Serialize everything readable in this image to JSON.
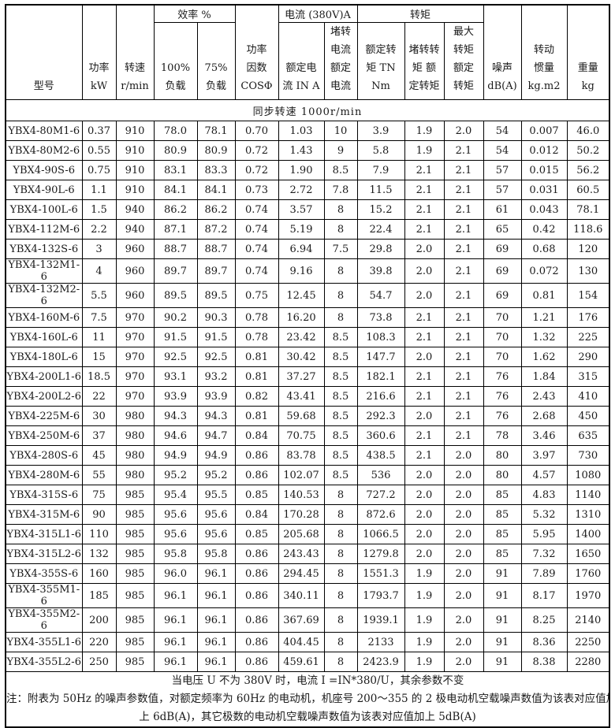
{
  "page": {
    "background": "#ffffff",
    "border_color": "#000000",
    "text_color": "#1a1a1a"
  },
  "table": {
    "header": {
      "model": "型号",
      "power": "功率\nkW",
      "speed": "转速\nr/min",
      "efficiency_group": "效率 %",
      "load100": "100%\n负载",
      "load75": "75%\n负载",
      "power_factor": "功率\n因数\nCOSΦ",
      "current_group": "电流 (380V)A",
      "rated_current": "额定电\n流 IN A",
      "locked_current": "堵转\n电流\n额定\n电流",
      "torque_group": "转矩",
      "rated_torque": "额定转\n矩 TN Nm",
      "locked_torque": "堵转转\n矩 额\n定转矩",
      "max_torque": "最大\n转矩\n额定\n转矩",
      "noise": "噪声\ndB(A)",
      "inertia": "转动\n惯量\nkg.m2",
      "weight": "重量\nkg"
    },
    "sync_speed_row": "同步转速 1000r/min",
    "rows": [
      [
        "YBX4-80M1-6",
        "0.37",
        "910",
        "78.0",
        "78.1",
        "0.70",
        "1.03",
        "10",
        "3.9",
        "1.9",
        "2.0",
        "54",
        "0.007",
        "46.0"
      ],
      [
        "YBX4-80M2-6",
        "0.55",
        "910",
        "80.9",
        "80.9",
        "0.72",
        "1.43",
        "9",
        "5.8",
        "1.9",
        "2.1",
        "54",
        "0.012",
        "50.2"
      ],
      [
        "YBX4-90S-6",
        "0.75",
        "910",
        "83.1",
        "83.3",
        "0.72",
        "1.90",
        "8.5",
        "7.9",
        "2.1",
        "2.1",
        "57",
        "0.015",
        "56.2"
      ],
      [
        "YBX4-90L-6",
        "1.1",
        "910",
        "84.1",
        "84.1",
        "0.73",
        "2.72",
        "7.8",
        "11.5",
        "2.1",
        "2.1",
        "57",
        "0.031",
        "60.5"
      ],
      [
        "YBX4-100L-6",
        "1.5",
        "940",
        "86.2",
        "86.2",
        "0.74",
        "3.57",
        "8",
        "15.2",
        "2.1",
        "2.1",
        "61",
        "0.043",
        "78.1"
      ],
      [
        "YBX4-112M-6",
        "2.2",
        "940",
        "87.1",
        "87.2",
        "0.74",
        "5.19",
        "8",
        "22.4",
        "2.1",
        "2.1",
        "65",
        "0.42",
        "118.6"
      ],
      [
        "YBX4-132S-6",
        "3",
        "960",
        "88.7",
        "88.7",
        "0.74",
        "6.94",
        "7.5",
        "29.8",
        "2.0",
        "2.1",
        "69",
        "0.68",
        "120"
      ],
      [
        "YBX4-132M1-6",
        "4",
        "960",
        "89.7",
        "89.7",
        "0.74",
        "9.16",
        "8",
        "39.8",
        "2.0",
        "2.1",
        "69",
        "0.072",
        "130"
      ],
      [
        "YBX4-132M2-6",
        "5.5",
        "960",
        "89.5",
        "89.5",
        "0.75",
        "12.45",
        "8",
        "54.7",
        "2.0",
        "2.1",
        "69",
        "0.81",
        "154"
      ],
      [
        "YBX4-160M-6",
        "7.5",
        "970",
        "90.2",
        "90.3",
        "0.78",
        "16.20",
        "8",
        "73.8",
        "2.1",
        "2.1",
        "70",
        "1.21",
        "176"
      ],
      [
        "YBX4-160L-6",
        "11",
        "970",
        "91.5",
        "91.5",
        "0.78",
        "23.42",
        "8.5",
        "108.3",
        "2.1",
        "2.1",
        "70",
        "1.32",
        "225"
      ],
      [
        "YBX4-180L-6",
        "15",
        "970",
        "92.5",
        "92.5",
        "0.81",
        "30.42",
        "8.5",
        "147.7",
        "2.0",
        "2.1",
        "70",
        "1.62",
        "290"
      ],
      [
        "YBX4-200L1-6",
        "18.5",
        "970",
        "93.1",
        "93.2",
        "0.81",
        "37.27",
        "8.5",
        "182.1",
        "2.1",
        "2.1",
        "76",
        "1.84",
        "315"
      ],
      [
        "YBX4-200L2-6",
        "22",
        "970",
        "93.9",
        "93.9",
        "0.82",
        "43.41",
        "8.5",
        "216.6",
        "2.1",
        "2.1",
        "76",
        "2.43",
        "410"
      ],
      [
        "YBX4-225M-6",
        "30",
        "980",
        "94.3",
        "94.3",
        "0.81",
        "59.68",
        "8.5",
        "292.3",
        "2.0",
        "2.1",
        "76",
        "2.68",
        "450"
      ],
      [
        "YBX4-250M-6",
        "37",
        "980",
        "94.6",
        "94.7",
        "0.84",
        "70.75",
        "8.5",
        "360.6",
        "2.1",
        "2.1",
        "78",
        "3.46",
        "635"
      ],
      [
        "YBX4-280S-6",
        "45",
        "980",
        "94.9",
        "94.9",
        "0.86",
        "83.78",
        "8.5",
        "438.5",
        "2.1",
        "2.0",
        "80",
        "3.97",
        "730"
      ],
      [
        "YBX4-280M-6",
        "55",
        "980",
        "95.2",
        "95.2",
        "0.86",
        "102.07",
        "8.5",
        "536",
        "2.0",
        "2.0",
        "80",
        "4.57",
        "1080"
      ],
      [
        "YBX4-315S-6",
        "75",
        "985",
        "95.4",
        "95.5",
        "0.85",
        "140.53",
        "8",
        "727.2",
        "2.0",
        "2.0",
        "85",
        "4.83",
        "1140"
      ],
      [
        "YBX4-315M-6",
        "90",
        "985",
        "95.6",
        "95.6",
        "0.84",
        "170.28",
        "8",
        "872.6",
        "2.0",
        "2.0",
        "85",
        "5.32",
        "1310"
      ],
      [
        "YBX4-315L1-6",
        "110",
        "985",
        "95.6",
        "95.6",
        "0.85",
        "205.68",
        "8",
        "1066.5",
        "2.0",
        "2.0",
        "85",
        "5.95",
        "1400"
      ],
      [
        "YBX4-315L2-6",
        "132",
        "985",
        "95.8",
        "95.8",
        "0.86",
        "243.43",
        "8",
        "1279.8",
        "2.0",
        "2.0",
        "85",
        "7.32",
        "1650"
      ],
      [
        "YBX4-355S-6",
        "160",
        "985",
        "96.0",
        "96.1",
        "0.86",
        "294.45",
        "8",
        "1551.3",
        "1.9",
        "2.0",
        "91",
        "7.89",
        "1760"
      ],
      [
        "YBX4-355M1-6",
        "185",
        "985",
        "96.1",
        "96.1",
        "0.86",
        "340.11",
        "8",
        "1793.7",
        "1.9",
        "2.0",
        "91",
        "8.17",
        "1970"
      ],
      [
        "YBX4-355M2-6",
        "200",
        "985",
        "96.1",
        "96.1",
        "0.86",
        "367.69",
        "8",
        "1939.1",
        "1.9",
        "2.0",
        "91",
        "8.25",
        "2140"
      ],
      [
        "YBX4-355L1-6",
        "220",
        "985",
        "96.1",
        "96.1",
        "0.86",
        "404.45",
        "8",
        "2133",
        "1.9",
        "2.0",
        "91",
        "8.36",
        "2250"
      ],
      [
        "YBX4-355L2-6",
        "250",
        "985",
        "96.1",
        "96.1",
        "0.86",
        "459.61",
        "8",
        "2423.9",
        "1.9",
        "2.0",
        "91",
        "8.38",
        "2280"
      ]
    ]
  },
  "notes": [
    "当电压 U 不为 380V 时，电流 I =IN*380/U，其余参数不变",
    "注：附表为 50Hz 的噪声参数值，对额定频率为 60Hz 的电动机，机座号 200～355 的 2 极电动机空载噪声数值为该表对应值加",
    "上 6dB(A)，其它极数的电动机空载噪声数值为该表对应值加上 5dB(A)"
  ]
}
